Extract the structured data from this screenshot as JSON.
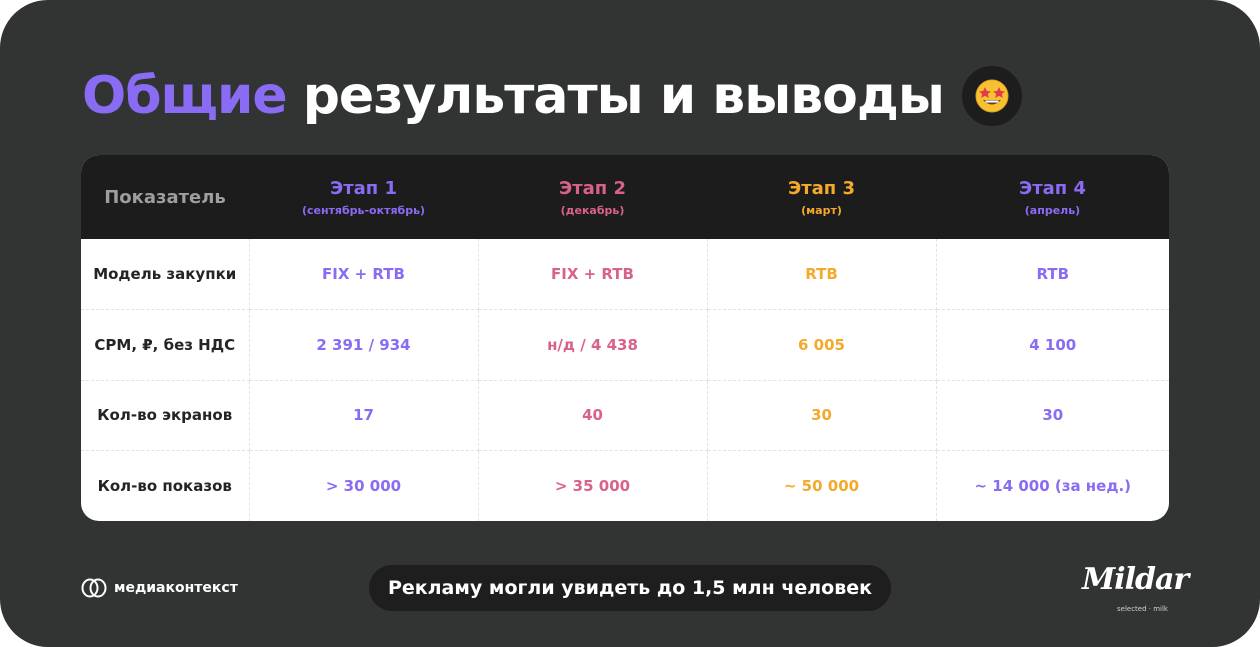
{
  "title": {
    "accent": "Общие",
    "rest": "результаты и выводы"
  },
  "title_emoji_icon": "star-struck-emoji-icon",
  "table": {
    "metric_header": "Показатель",
    "stages": [
      {
        "name": "Этап 1",
        "period": "(сентябрь-октябрь)",
        "color": "#8a6cf4"
      },
      {
        "name": "Этап 2",
        "period": "(декабрь)",
        "color": "#d8628a"
      },
      {
        "name": "Этап 3",
        "period": "(март)",
        "color": "#f4a92a"
      },
      {
        "name": "Этап 4",
        "period": "(апрель)",
        "color": "#8a6cf4"
      }
    ],
    "rows": [
      {
        "metric": "Модель закупки",
        "values": [
          "FIX + RTB",
          "FIX + RTB",
          "RTB",
          "RTB"
        ]
      },
      {
        "metric": "CPM, ₽, без НДС",
        "values": [
          "2 391 / 934",
          "н/д / 4 438",
          "6 005",
          "4 100"
        ]
      },
      {
        "metric": "Кол-во экранов",
        "values": [
          "17",
          "40",
          "30",
          "30"
        ]
      },
      {
        "metric": "Кол-во показов",
        "values": [
          "> 30 000",
          "> 35 000",
          "~ 50 000",
          "~ 14 000 (за нед.)"
        ]
      }
    ]
  },
  "footer": {
    "left_logo": "медиаконтекст",
    "summary": "Рекламу могли увидеть до 1,5 млн человек",
    "brand_name": "Mildar",
    "brand_sub": "selected · milk"
  }
}
